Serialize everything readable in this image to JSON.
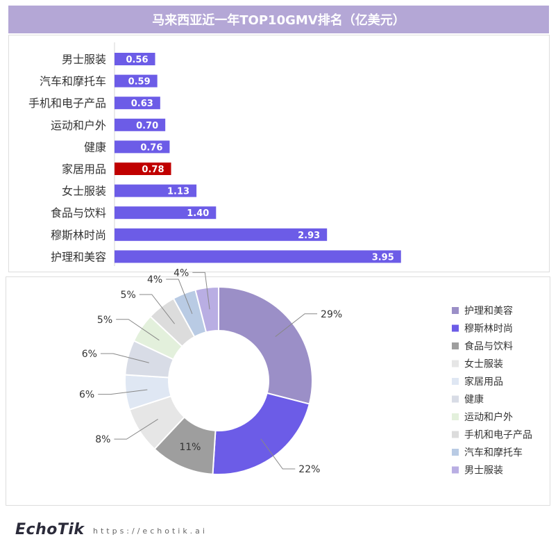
{
  "title": "马来西亚近一年TOP10GMV排名（亿美元）",
  "footer": {
    "logo": "EchoTik",
    "url": "https://echotik.ai"
  },
  "colors": {
    "bar": "#6c5ce7",
    "highlight": "#c00000"
  },
  "chart_data": [
    {
      "type": "bar",
      "orientation": "horizontal",
      "categories": [
        "男士服装",
        "汽车和摩托车",
        "手机和电子产品",
        "运动和户外",
        "健康",
        "家居用品",
        "女士服装",
        "食品与饮料",
        "穆斯林时尚",
        "护理和美容"
      ],
      "values": [
        0.56,
        0.59,
        0.63,
        0.7,
        0.76,
        0.78,
        1.13,
        1.4,
        2.93,
        3.95
      ],
      "value_labels": [
        "0.56",
        "0.59",
        "0.63",
        "0.70",
        "0.76",
        "0.78",
        "1.13",
        "1.40",
        "2.93",
        "3.95"
      ],
      "highlight": "家居用品",
      "xlim": [
        0,
        4.3
      ],
      "grid": false
    },
    {
      "type": "pie",
      "donut": true,
      "labels": [
        "护理和美容",
        "穆斯林时尚",
        "食品与饮料",
        "女士服装",
        "家居用品",
        "健康",
        "运动和户外",
        "手机和电子产品",
        "汽车和摩托车",
        "男士服装"
      ],
      "values": [
        29,
        22,
        11,
        8,
        6,
        6,
        5,
        5,
        4,
        4
      ],
      "value_labels": [
        "29%",
        "22%",
        "11%",
        "8%",
        "6%",
        "6%",
        "5%",
        "5%",
        "4%",
        "4%"
      ],
      "colors": [
        "#9b8fc7",
        "#6c5ce7",
        "#9e9e9e",
        "#e6e6e6",
        "#dfe7f3",
        "#d8dce6",
        "#e3f0dc",
        "#dcdcdc",
        "#b9cbe4",
        "#b9aee3"
      ],
      "legend_position": "right"
    }
  ]
}
